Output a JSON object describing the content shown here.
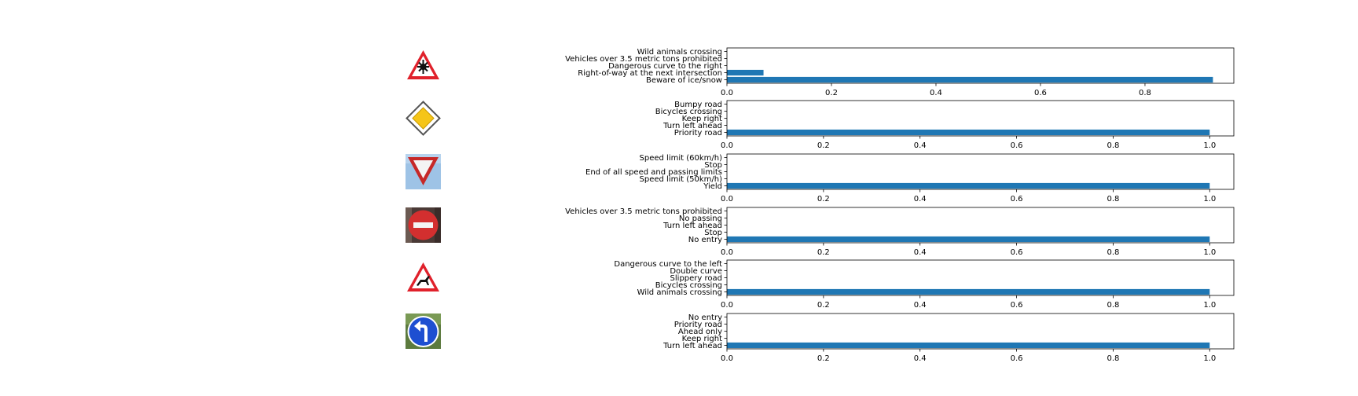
{
  "figure": {
    "rows": [
      {
        "sign": {
          "icon": "beware-of-ice-snow-sign-icon",
          "background": "#ffffff",
          "border": "#e0212b"
        },
        "chart_data": {
          "type": "bar",
          "orientation": "horizontal",
          "categories": [
            "Beware of ice/snow",
            "Right-of-way at the next intersection",
            "Dangerous curve to the right",
            "Vehicles over 3.5 metric tons prohibited",
            "Wild animals crossing"
          ],
          "values": [
            0.93,
            0.07,
            0.0,
            0.0,
            0.0
          ],
          "xlim": [
            0,
            0.97
          ],
          "xticks": [
            0.0,
            0.2,
            0.4,
            0.6,
            0.8
          ],
          "tick_labels": [
            "0.0",
            "0.2",
            "0.4",
            "0.6",
            "0.8"
          ],
          "grid": false,
          "bar_color": "#1f77b4"
        }
      },
      {
        "sign": {
          "icon": "priority-road-sign-icon",
          "background": "#ffffff",
          "border": "#444444"
        },
        "chart_data": {
          "type": "bar",
          "orientation": "horizontal",
          "categories": [
            "Priority road",
            "Turn left ahead",
            "Keep right",
            "Bicycles crossing",
            "Bumpy road"
          ],
          "values": [
            1.0,
            0.0,
            0.0,
            0.0,
            0.0
          ],
          "xlim": [
            0,
            1.05
          ],
          "xticks": [
            0.0,
            0.2,
            0.4,
            0.6,
            0.8,
            1.0
          ],
          "tick_labels": [
            "0.0",
            "0.2",
            "0.4",
            "0.6",
            "0.8",
            "1.0"
          ],
          "grid": false,
          "bar_color": "#1f77b4"
        }
      },
      {
        "sign": {
          "icon": "yield-sign-icon",
          "background": "#9ec3e6",
          "border": "#c62828"
        },
        "chart_data": {
          "type": "bar",
          "orientation": "horizontal",
          "categories": [
            "Yield",
            "Speed limit (50km/h)",
            "End of all speed and passing limits",
            "Stop",
            "Speed limit (60km/h)"
          ],
          "values": [
            1.0,
            0.0,
            0.0,
            0.0,
            0.0
          ],
          "xlim": [
            0,
            1.05
          ],
          "xticks": [
            0.0,
            0.2,
            0.4,
            0.6,
            0.8,
            1.0
          ],
          "tick_labels": [
            "0.0",
            "0.2",
            "0.4",
            "0.6",
            "0.8",
            "1.0"
          ],
          "grid": false,
          "bar_color": "#1f77b4"
        }
      },
      {
        "sign": {
          "icon": "no-entry-sign-icon",
          "background": "#4a3a36",
          "border": "#d32f2f"
        },
        "chart_data": {
          "type": "bar",
          "orientation": "horizontal",
          "categories": [
            "No entry",
            "Stop",
            "Turn left ahead",
            "No passing",
            "Vehicles over 3.5 metric tons prohibited"
          ],
          "values": [
            1.0,
            0.0,
            0.0,
            0.0,
            0.0
          ],
          "xlim": [
            0,
            1.05
          ],
          "xticks": [
            0.0,
            0.2,
            0.4,
            0.6,
            0.8,
            1.0
          ],
          "tick_labels": [
            "0.0",
            "0.2",
            "0.4",
            "0.6",
            "0.8",
            "1.0"
          ],
          "grid": false,
          "bar_color": "#1f77b4"
        }
      },
      {
        "sign": {
          "icon": "wild-animals-crossing-sign-icon",
          "background": "#ffffff",
          "border": "#e0212b"
        },
        "chart_data": {
          "type": "bar",
          "orientation": "horizontal",
          "categories": [
            "Wild animals crossing",
            "Bicycles crossing",
            "Slippery road",
            "Double curve",
            "Dangerous curve to the left"
          ],
          "values": [
            1.0,
            0.0,
            0.0,
            0.0,
            0.0
          ],
          "xlim": [
            0,
            1.05
          ],
          "xticks": [
            0.0,
            0.2,
            0.4,
            0.6,
            0.8,
            1.0
          ],
          "tick_labels": [
            "0.0",
            "0.2",
            "0.4",
            "0.6",
            "0.8",
            "1.0"
          ],
          "grid": false,
          "bar_color": "#1f77b4"
        }
      },
      {
        "sign": {
          "icon": "turn-left-ahead-sign-icon",
          "background": "#5c7a3e",
          "border": "#1e4fd1"
        },
        "chart_data": {
          "type": "bar",
          "orientation": "horizontal",
          "categories": [
            "Turn left ahead",
            "Keep right",
            "Ahead only",
            "Priority road",
            "No entry"
          ],
          "values": [
            1.0,
            0.0,
            0.0,
            0.0,
            0.0
          ],
          "xlim": [
            0,
            1.05
          ],
          "xticks": [
            0.0,
            0.2,
            0.4,
            0.6,
            0.8,
            1.0
          ],
          "tick_labels": [
            "0.0",
            "0.2",
            "0.4",
            "0.6",
            "0.8",
            "1.0"
          ],
          "grid": false,
          "bar_color": "#1f77b4"
        }
      }
    ]
  }
}
